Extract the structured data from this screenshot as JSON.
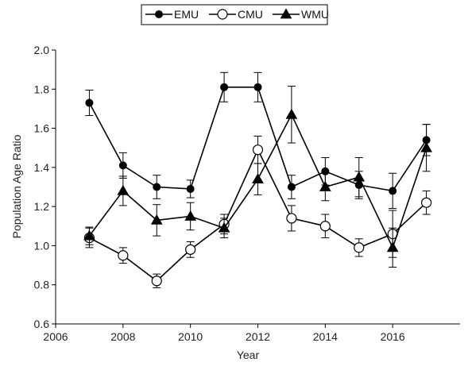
{
  "chart_data": {
    "type": "line",
    "title": "",
    "xlabel": "Year",
    "ylabel": "Population Age Ratio",
    "xlim": [
      2006,
      2018
    ],
    "ylim": [
      0.6,
      2.0
    ],
    "x_ticks": [
      2006,
      2008,
      2010,
      2012,
      2014,
      2016
    ],
    "y_ticks": [
      0.6,
      0.8,
      1.0,
      1.2,
      1.4,
      1.6,
      1.8,
      2.0
    ],
    "x_tick_labels": [
      "2006",
      "2008",
      "2010",
      "2012",
      "2014",
      "2016"
    ],
    "y_tick_labels": [
      "0.6",
      "0.8",
      "1.0",
      "1.2",
      "1.4",
      "1.6",
      "1.8",
      "2.0"
    ],
    "grid": false,
    "legend_position": "top-center",
    "x": [
      2007,
      2008,
      2009,
      2010,
      2011,
      2012,
      2013,
      2014,
      2015,
      2016,
      2017
    ],
    "series": [
      {
        "name": "EMU",
        "marker": "filled-circle",
        "color": "#000000",
        "values": [
          1.73,
          1.41,
          1.3,
          1.29,
          1.81,
          1.81,
          1.3,
          1.38,
          1.31,
          1.28,
          1.54
        ],
        "errors": [
          0.065,
          0.065,
          0.06,
          0.045,
          0.075,
          0.075,
          0.06,
          0.07,
          0.07,
          0.09,
          0.08
        ]
      },
      {
        "name": "CMU",
        "marker": "open-circle",
        "color": "#000000",
        "values": [
          1.04,
          0.95,
          0.82,
          0.98,
          1.11,
          1.49,
          1.14,
          1.1,
          0.99,
          1.06,
          1.22
        ],
        "errors": [
          0.05,
          0.04,
          0.035,
          0.04,
          0.05,
          0.07,
          0.065,
          0.06,
          0.045,
          0.12,
          0.06
        ]
      },
      {
        "name": "WMU",
        "marker": "filled-triangle",
        "color": "#000000",
        "values": [
          1.05,
          1.28,
          1.13,
          1.15,
          1.09,
          1.34,
          1.67,
          1.3,
          1.35,
          0.99,
          1.5
        ],
        "errors": [
          0.045,
          0.075,
          0.08,
          0.07,
          0.05,
          0.08,
          0.145,
          0.07,
          0.1,
          0.1,
          0.12
        ]
      }
    ]
  }
}
